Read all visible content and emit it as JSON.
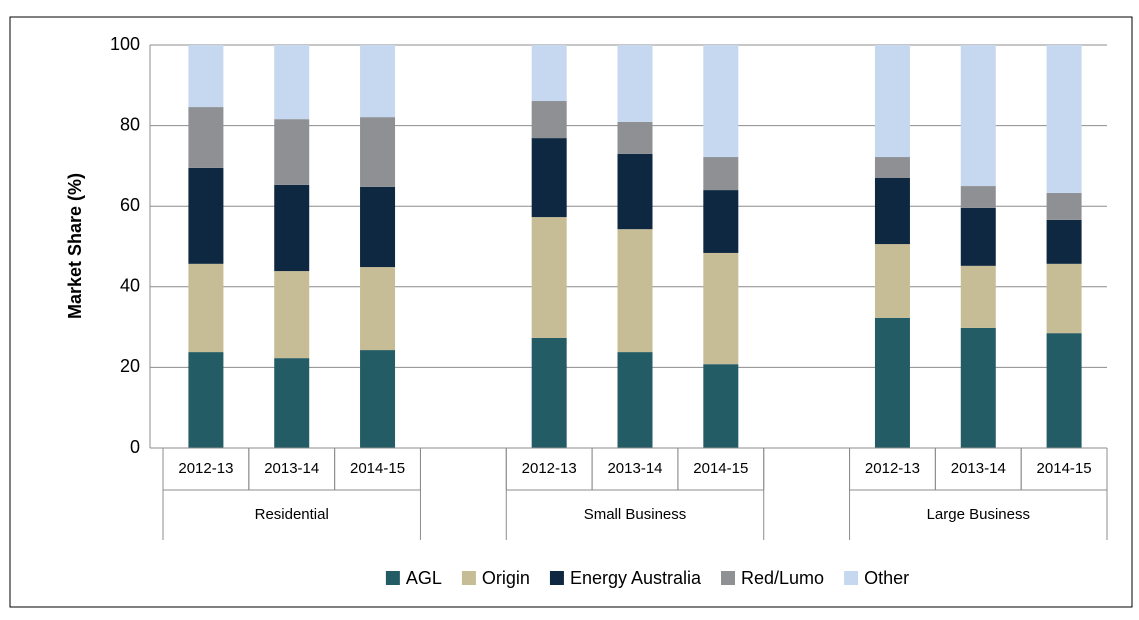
{
  "chart_data": {
    "type": "bar",
    "stacked": true,
    "y_label": "Market Share (%)",
    "categories": [
      "2012-13",
      "2013-14",
      "2014-15",
      null,
      "2012-13",
      "2013-14",
      "2014-15",
      null,
      "2012-13",
      "2013-14",
      "2014-15"
    ],
    "groups": [
      "Residential",
      "Small Business",
      "Large Business"
    ],
    "series": [
      {
        "name": "AGL",
        "color": "#245c66",
        "values": [
          23.8,
          22.3,
          24.3,
          null,
          27.3,
          23.8,
          20.8,
          null,
          32.3,
          29.8,
          28.5
        ]
      },
      {
        "name": "Origin",
        "color": "#c6bc96",
        "values": [
          21.9,
          21.6,
          20.6,
          null,
          30.0,
          30.5,
          27.6,
          null,
          18.3,
          15.4,
          17.2
        ]
      },
      {
        "name": "Energy Australia",
        "color": "#0f2841",
        "values": [
          23.8,
          21.4,
          19.9,
          null,
          19.6,
          18.7,
          15.6,
          null,
          16.4,
          14.4,
          10.9
        ]
      },
      {
        "name": "Red/Lumo",
        "color": "#8e9093",
        "values": [
          15.1,
          16.3,
          17.3,
          null,
          9.2,
          7.9,
          8.2,
          null,
          5.2,
          5.4,
          6.7
        ]
      },
      {
        "name": "Other",
        "color": "#c5d8ef",
        "values": [
          15.4,
          18.4,
          17.9,
          null,
          13.9,
          19.1,
          27.8,
          null,
          27.8,
          35.0,
          36.7
        ]
      }
    ],
    "ylim": [
      0,
      100
    ],
    "yticks": [
      0,
      20,
      40,
      60,
      80,
      100
    ],
    "grid": true,
    "legend": "bottom"
  }
}
